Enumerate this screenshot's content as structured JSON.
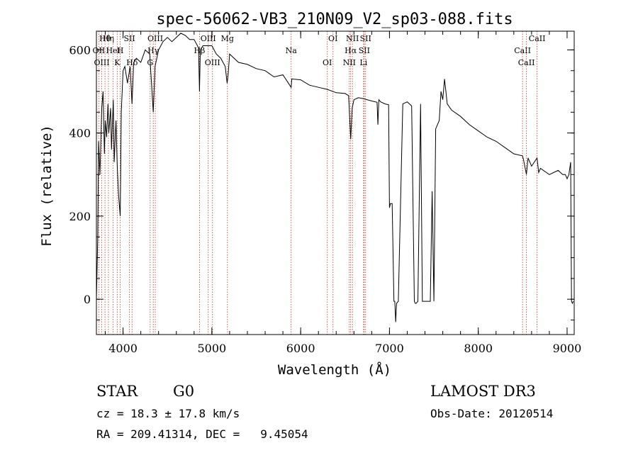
{
  "chart_data": {
    "type": "line",
    "title": "spec-56062-VB3_210N09_V2_sp03-088.fits",
    "xlabel": "Wavelength (Å)",
    "ylabel": "Flux (relative)",
    "xlim": [
      3700,
      9080
    ],
    "ylim": [
      -85,
      645
    ],
    "xticks": [
      4000,
      5000,
      6000,
      7000,
      8000,
      9000
    ],
    "yticks": [
      0,
      200,
      400,
      600
    ],
    "grid": false,
    "series": [
      {
        "name": "flux",
        "x": [
          3700,
          3715,
          3725,
          3740,
          3760,
          3775,
          3790,
          3800,
          3815,
          3830,
          3840,
          3860,
          3870,
          3890,
          3900,
          3920,
          3935,
          3950,
          3968,
          3980,
          4000,
          4020,
          4050,
          4080,
          4101,
          4120,
          4150,
          4200,
          4250,
          4300,
          4340,
          4360,
          4400,
          4450,
          4500,
          4550,
          4600,
          4650,
          4700,
          4750,
          4800,
          4850,
          4861,
          4870,
          4900,
          4950,
          5000,
          5050,
          5100,
          5150,
          5172,
          5183,
          5200,
          5300,
          5400,
          5500,
          5600,
          5700,
          5800,
          5893,
          5900,
          6000,
          6100,
          6200,
          6300,
          6400,
          6500,
          6540,
          6563,
          6580,
          6600,
          6650,
          6700,
          6800,
          6860,
          6870,
          6880,
          6900,
          6950,
          6990,
          7000,
          7010,
          7030,
          7050,
          7060,
          7070,
          7080,
          7100,
          7150,
          7200,
          7250,
          7280,
          7290,
          7300,
          7320,
          7350,
          7370,
          7380,
          7400,
          7420,
          7440,
          7460,
          7480,
          7500,
          7520,
          7540,
          7560,
          7580,
          7600,
          7620,
          7650,
          7700,
          7800,
          7900,
          8000,
          8100,
          8200,
          8300,
          8400,
          8498,
          8510,
          8542,
          8560,
          8600,
          8662,
          8680,
          8700,
          8800,
          8900,
          8950,
          8980,
          9000,
          9020,
          9040,
          9050,
          9060,
          9070
        ],
        "y": [
          0,
          150,
          380,
          300,
          460,
          500,
          350,
          430,
          390,
          470,
          400,
          460,
          360,
          480,
          330,
          430,
          320,
          250,
          200,
          450,
          550,
          560,
          520,
          560,
          470,
          570,
          580,
          570,
          600,
          590,
          450,
          560,
          600,
          620,
          630,
          620,
          630,
          640,
          635,
          625,
          625,
          605,
          500,
          600,
          610,
          610,
          610,
          590,
          580,
          560,
          520,
          540,
          590,
          570,
          565,
          555,
          550,
          535,
          540,
          510,
          530,
          528,
          515,
          510,
          505,
          497,
          495,
          490,
          385,
          460,
          480,
          485,
          483,
          477,
          474,
          420,
          480,
          475,
          470,
          468,
          220,
          230,
          230,
          -5,
          -5,
          -55,
          -10,
          -5,
          470,
          475,
          465,
          -5,
          -10,
          -10,
          -5,
          470,
          -5,
          -5,
          -5,
          -5,
          -5,
          -5,
          260,
          -5,
          410,
          420,
          430,
          500,
          480,
          530,
          470,
          455,
          440,
          420,
          405,
          390,
          380,
          365,
          350,
          345,
          335,
          300,
          340,
          320,
          340,
          305,
          315,
          300,
          310,
          300,
          300,
          290,
          300,
          330,
          -5,
          -10,
          -5
        ]
      }
    ],
    "spectral_lines": [
      {
        "label": "Hθ",
        "x": 3797
      },
      {
        "label": "OII",
        "x": 3727
      },
      {
        "label": "OIII",
        "x": 3760
      },
      {
        "label": "Hη",
        "x": 3835
      },
      {
        "label": "HeI",
        "x": 3889
      },
      {
        "label": "K",
        "x": 3934
      },
      {
        "label": "SII",
        "x": 4072
      },
      {
        "label": "H",
        "x": 3968
      },
      {
        "label": "Hδ",
        "x": 4101
      },
      {
        "label": "OIII",
        "x": 4363
      },
      {
        "label": "Hγ",
        "x": 4340
      },
      {
        "label": "G",
        "x": 4305
      },
      {
        "label": "OIII",
        "x": 4959
      },
      {
        "label": "Hβ",
        "x": 4861
      },
      {
        "label": "OIII",
        "x": 5007
      },
      {
        "label": "Mg",
        "x": 5175
      },
      {
        "label": "Na",
        "x": 5893
      },
      {
        "label": "OI",
        "x": 6300
      },
      {
        "label": "OI",
        "x": 6364
      },
      {
        "label": "Hα",
        "x": 6563
      },
      {
        "label": "NII",
        "x": 6548
      },
      {
        "label": "NII",
        "x": 6583
      },
      {
        "label": "SII",
        "x": 6716
      },
      {
        "label": "Li",
        "x": 6708
      },
      {
        "label": "SII",
        "x": 6731
      },
      {
        "label": "CaII",
        "x": 8498
      },
      {
        "label": "CaII",
        "x": 8542
      },
      {
        "label": "CaII",
        "x": 8662
      }
    ]
  },
  "info": {
    "object_class": "STAR",
    "subclass": "G0",
    "survey": "LAMOST DR3",
    "cz": "cz = 18.3 ± 17.8 km/s",
    "obs_date": "Obs-Date: 20120514",
    "coords": "RA = 209.41314, DEC =   9.45054"
  },
  "colors": {
    "line_marker": "#c0392b",
    "spectrum": "#000000"
  }
}
